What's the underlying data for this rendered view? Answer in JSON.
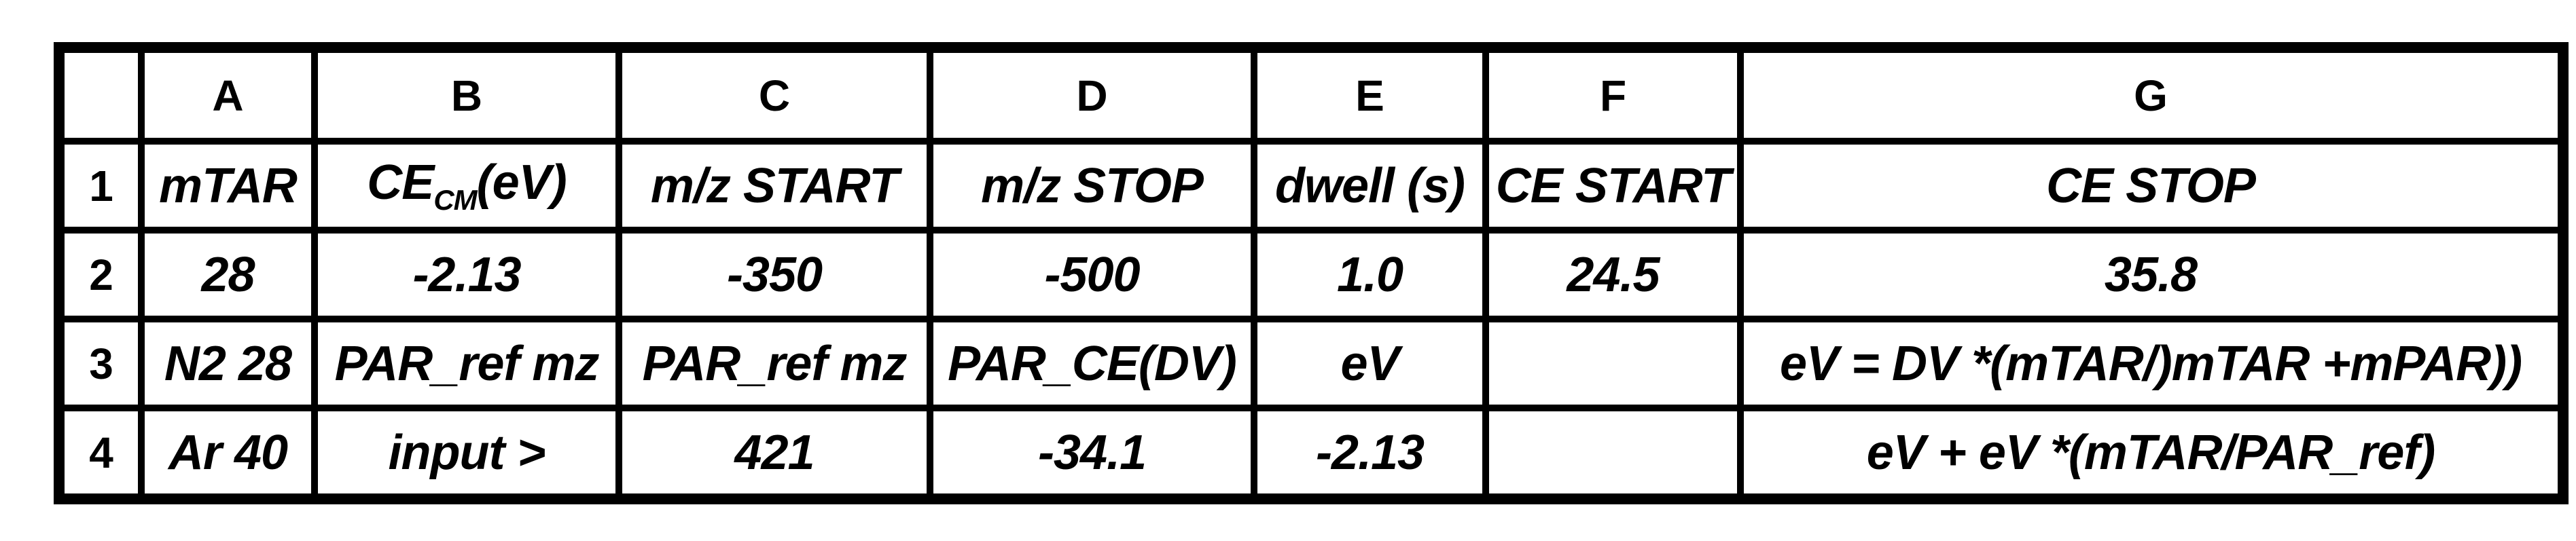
{
  "palette": {
    "border": "#000000",
    "header-fill": "#F1F1F1",
    "yellow": "#FBDF8D",
    "blue": "#AEC9E8",
    "green": "#9BCC83",
    "white": "#FFFFFF",
    "text": "#000000",
    "page-bg": "#FFFFFF"
  },
  "table": {
    "column_letters": [
      "A",
      "B",
      "C",
      "D",
      "E",
      "F",
      "G"
    ],
    "row_numbers": [
      "1",
      "2",
      "3",
      "4"
    ],
    "row1": {
      "a": "mTAR",
      "b_pre": "CE",
      "b_sub": "CM",
      "b_post": "(eV)",
      "c": "m/z START",
      "d": "m/z STOP",
      "e": "dwell (s)",
      "f": "CE START",
      "g": "CE STOP"
    },
    "row2": {
      "a": "28",
      "b": "-2.13",
      "c": "-350",
      "d": "-500",
      "e": "1.0",
      "f": "24.5",
      "g": "35.8"
    },
    "row3": {
      "a": "N2 28",
      "b": "PAR_ref mz",
      "c": "PAR_ref mz",
      "d": "PAR_CE(DV)",
      "e": "eV",
      "f": "",
      "g": "eV = DV *(mTAR/)mTAR +mPAR))"
    },
    "row4": {
      "a": "Ar 40",
      "b": "input >",
      "c": "421",
      "d": "-34.1",
      "e": "-2.13",
      "f": "",
      "g": "eV + eV *(mTAR/PAR_ref)"
    },
    "cell_fills": {
      "B2": "yellow",
      "C2": "blue",
      "D2": "blue",
      "E2": "blue",
      "F2": "blue",
      "G2": "blue",
      "C3": "green",
      "D3": "green",
      "E3": "yellow",
      "C4": "green",
      "D4": "green",
      "E4": "yellow"
    }
  }
}
